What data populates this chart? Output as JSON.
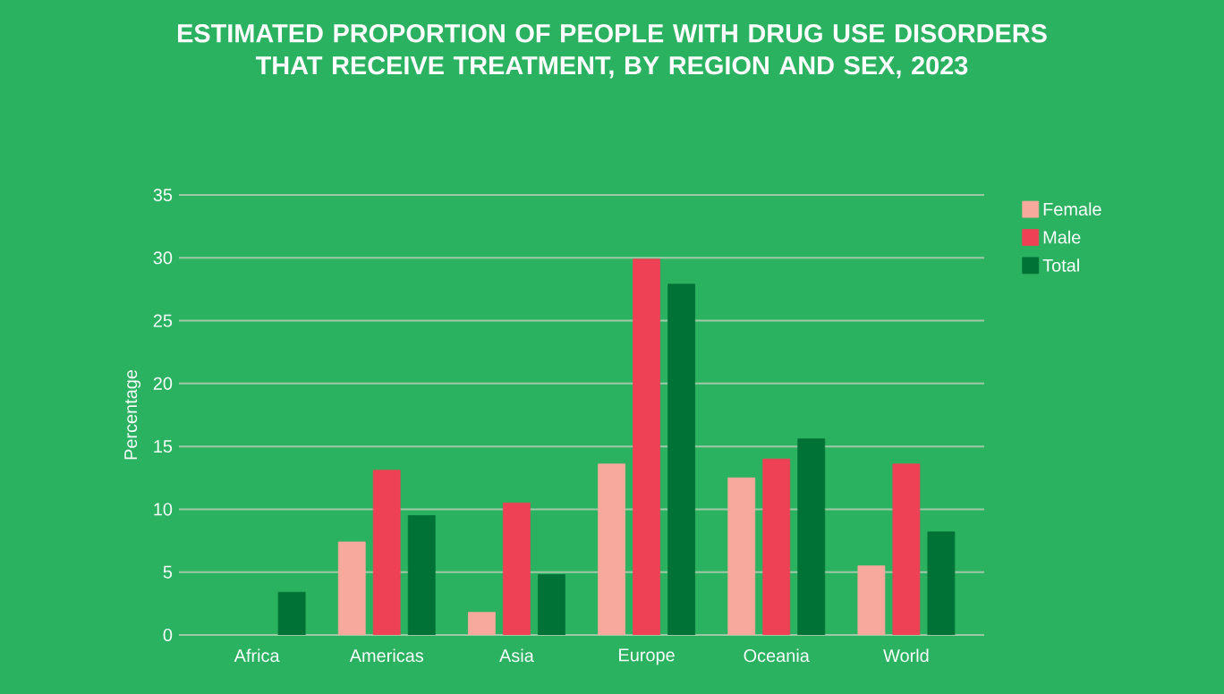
{
  "chart_data": {
    "type": "bar",
    "title": "ESTIMATED PROPORTION OF PEOPLE WITH DRUG USE DISORDERS THAT RECEIVE TREATMENT, BY REGION AND SEX, 2023",
    "ylabel": "Percentage",
    "categories": [
      "Africa",
      "Americas",
      "Asia",
      "Europe",
      "Oceania",
      "World"
    ],
    "series": [
      {
        "name": "Female",
        "color": "#f7a99d",
        "values": [
          null,
          7.4,
          1.8,
          13.6,
          12.5,
          5.5
        ]
      },
      {
        "name": "Male",
        "color": "#ef4155",
        "values": [
          null,
          13.1,
          10.5,
          29.9,
          14.0,
          13.6
        ]
      },
      {
        "name": "Total",
        "color": "#007236",
        "values": [
          3.4,
          9.5,
          4.8,
          27.9,
          15.6,
          8.2
        ]
      }
    ],
    "ylim": [
      0,
      35
    ],
    "yticks": [
      0,
      5,
      10,
      15,
      20,
      25,
      30,
      35
    ],
    "grid": "y",
    "legend": "top right"
  }
}
